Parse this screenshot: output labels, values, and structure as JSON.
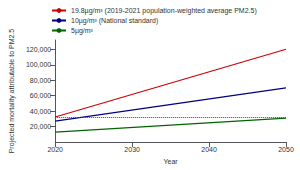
{
  "chart_data": {
    "type": "line",
    "xlabel": "Year",
    "ylabel": "Projected mortality attributable to PM2.5",
    "x": [
      2020,
      2050
    ],
    "series": [
      {
        "name": "19.8µg/m³ (2019-2021 population-weighted average PM2.5)",
        "color": "#cc0000",
        "line_style": "solid",
        "values": [
          32500,
          120000
        ]
      },
      {
        "name": "10µg/m³ (National standard)",
        "color": "#000080",
        "line_style": "solid",
        "values": [
          27000,
          70000
        ]
      },
      {
        "name": "5µg/m³",
        "color": "#006400",
        "line_style": "solid",
        "values": [
          13000,
          31000
        ]
      }
    ],
    "reference_lines": [
      {
        "y": 32500,
        "color": "#444444",
        "line_style": "dotted"
      }
    ],
    "xlim": [
      2020,
      2050
    ],
    "xticks": [
      2020,
      2030,
      2040,
      2050
    ],
    "ylim": [
      0,
      132000
    ],
    "yticks": [
      {
        "value": 20000,
        "label": "20,000"
      },
      {
        "value": 40000,
        "label": "40,000"
      },
      {
        "value": 60000,
        "label": "60,000"
      },
      {
        "value": 80000,
        "label": "80,000"
      },
      {
        "value": 100000,
        "label": "100,000"
      },
      {
        "value": 120000,
        "label": "120,000"
      }
    ],
    "grid": false,
    "legend": "upper left"
  }
}
